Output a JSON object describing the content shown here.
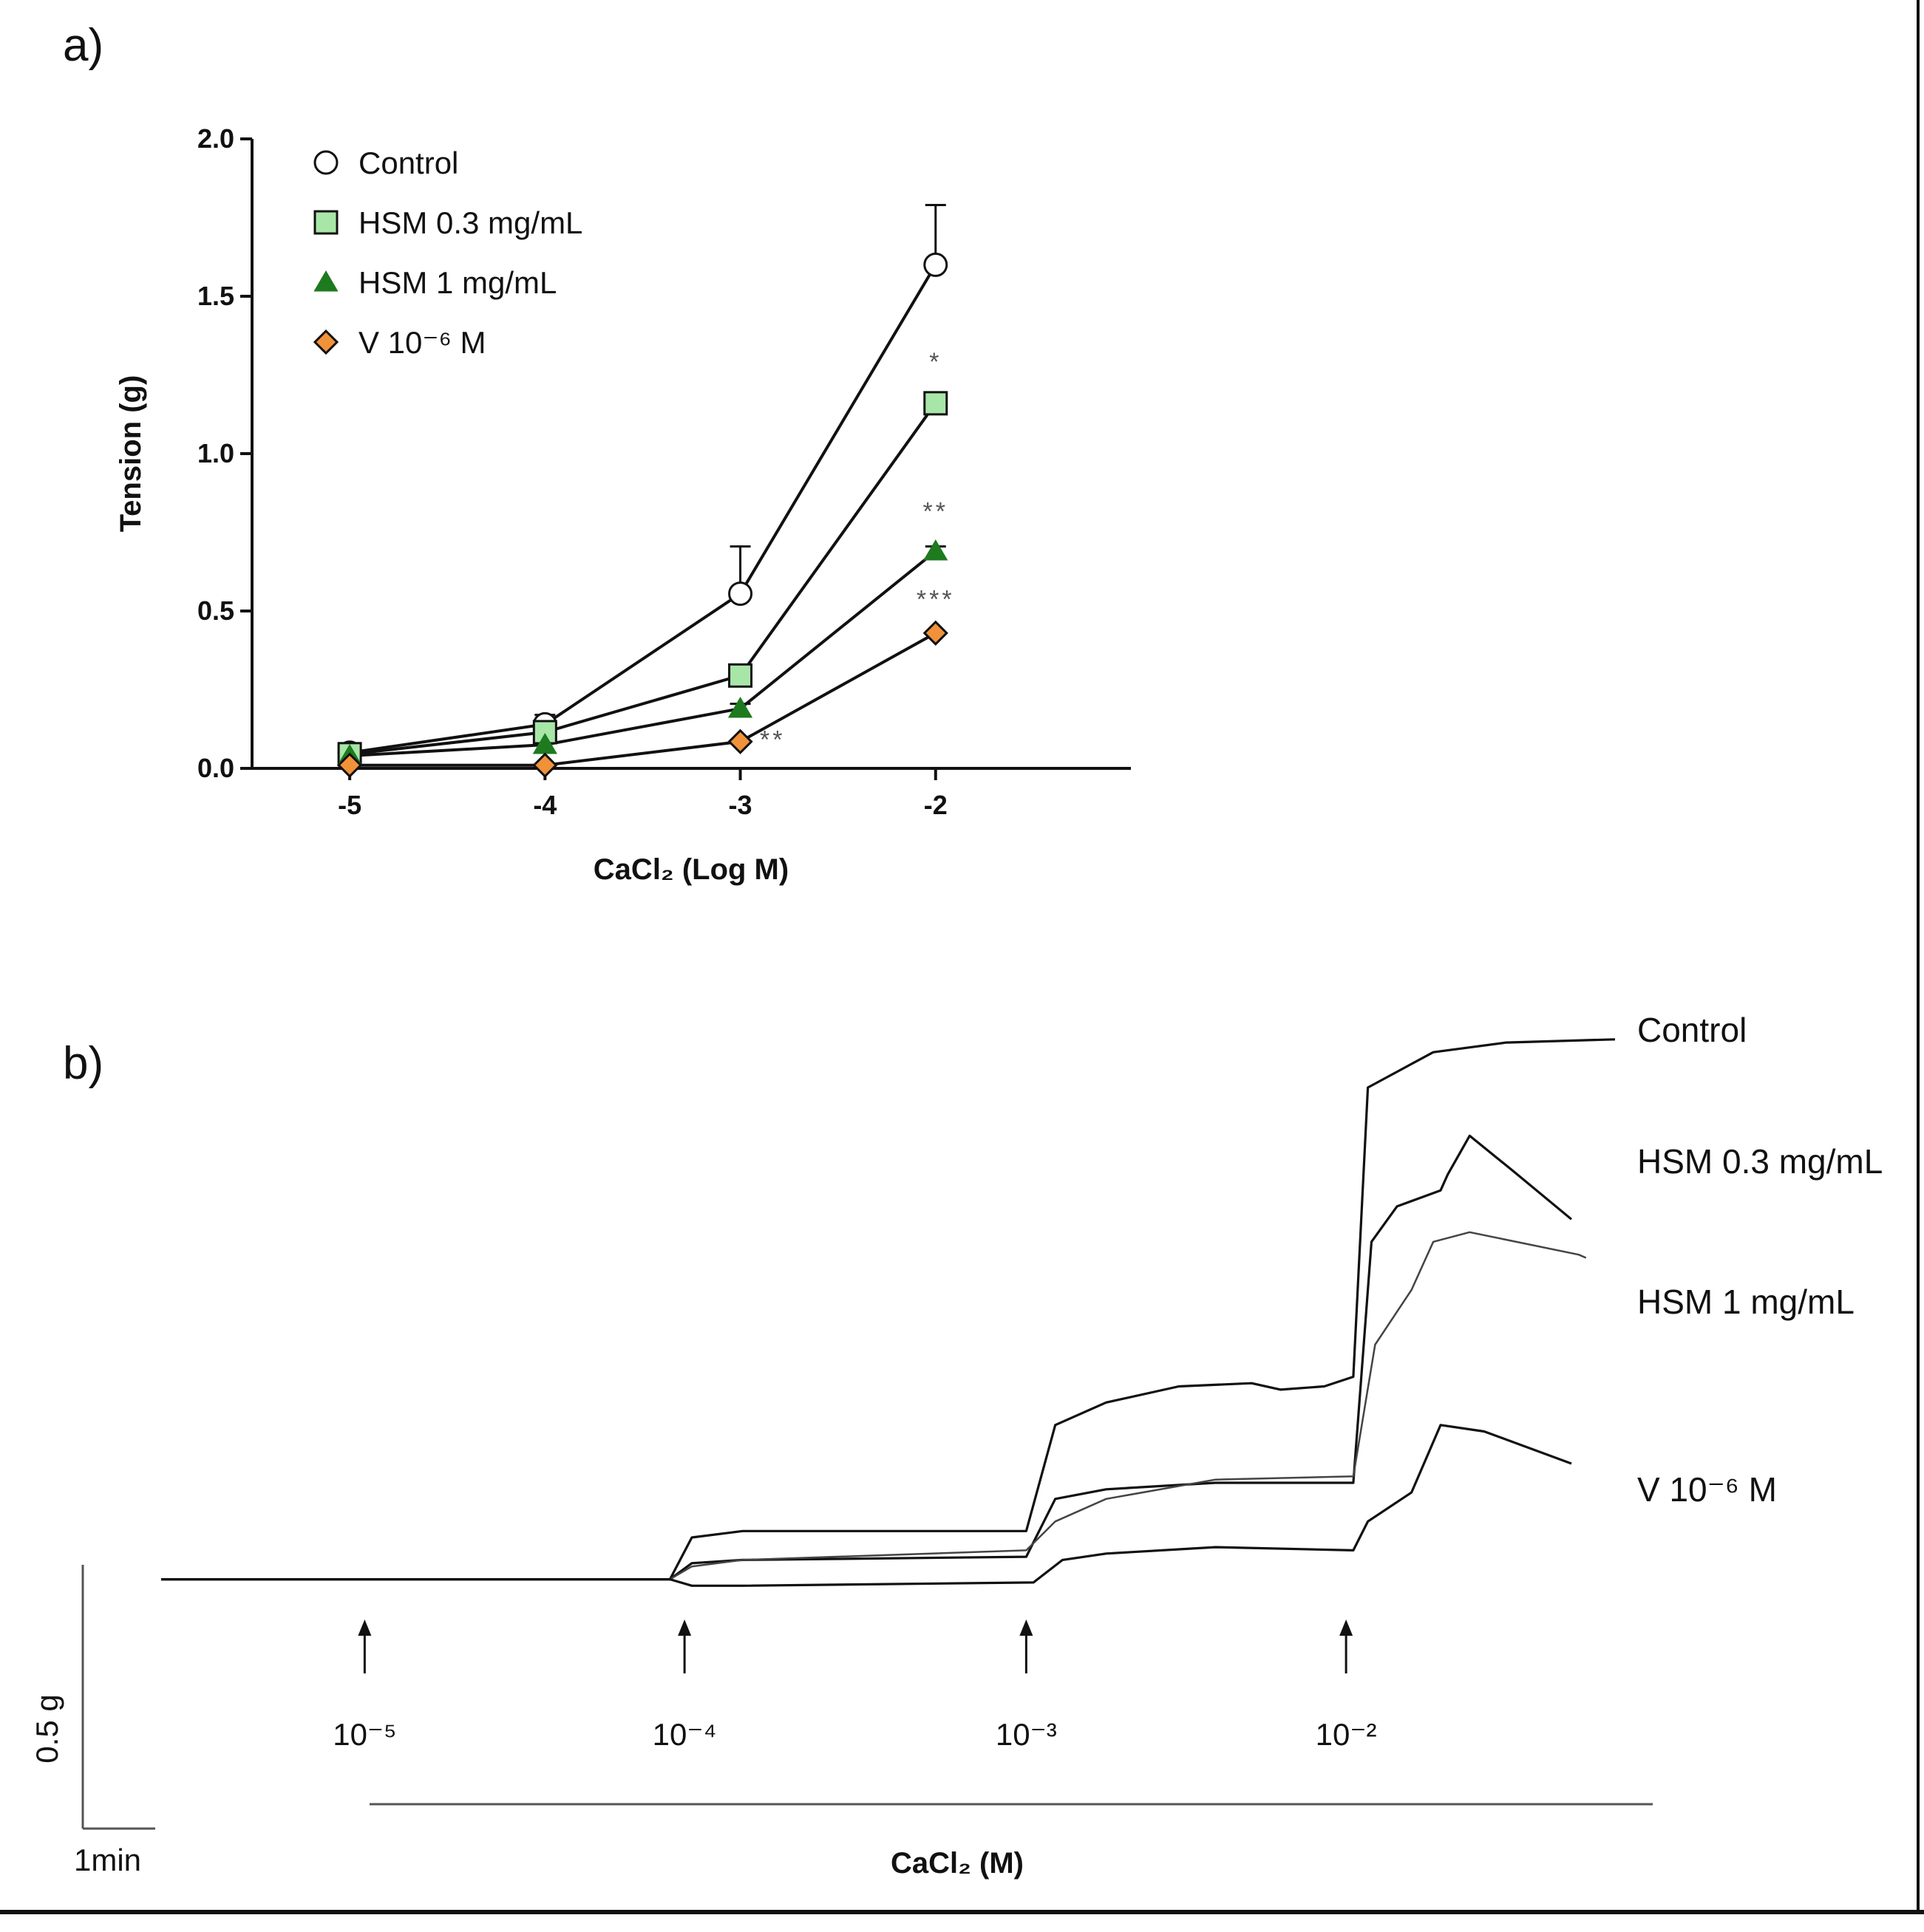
{
  "panels": {
    "a": "a)",
    "b": "b)"
  },
  "chart_data": [
    {
      "type": "line",
      "panel": "a)",
      "xlabel": "CaCl₂ (Log M)",
      "ylabel": "Tension (g)",
      "x": [
        -5,
        -4,
        -3,
        -2
      ],
      "xticks": [
        "-5",
        "-4",
        "-3",
        "-2"
      ],
      "yticks": [
        "0.0",
        "0.5",
        "1.0",
        "1.5",
        "2.0"
      ],
      "xlim": [
        -5.5,
        -1.0
      ],
      "ylim": [
        0,
        2.0
      ],
      "legend_position": "top-left",
      "series": [
        {
          "name": "Control",
          "values": [
            0.05,
            0.14,
            0.555,
            1.6
          ],
          "err_upper": [
            0,
            0.03,
            0.15,
            0.19
          ],
          "marker": "circle",
          "fill": "#ffffff"
        },
        {
          "name": "HSM 0.3 mg/mL",
          "values": [
            0.045,
            0.115,
            0.295,
            1.16
          ],
          "err_upper": [
            0,
            0.02,
            0.02,
            0.03
          ],
          "marker": "square",
          "fill": "#a8e6a8"
        },
        {
          "name": "HSM 1 mg/mL",
          "values": [
            0.04,
            0.075,
            0.19,
            0.69
          ],
          "err_upper": [
            0,
            0.01,
            0.015,
            0.015
          ],
          "marker": "triangle",
          "fill": "#1e7a1e"
        },
        {
          "name": "V 10⁻⁶ M",
          "values": [
            0.01,
            0.01,
            0.085,
            0.43
          ],
          "err_upper": [
            0,
            0,
            0,
            0
          ],
          "marker": "diamond",
          "fill": "#f0923a"
        }
      ],
      "annotations": [
        {
          "text": "*",
          "x": -2,
          "y": 1.265,
          "anchor": "middle"
        },
        {
          "text": "**",
          "x": -2,
          "y": 0.79,
          "anchor": "middle"
        },
        {
          "text": "***",
          "x": -2,
          "y": 0.51,
          "anchor": "middle"
        },
        {
          "text": "**",
          "x": -2.9,
          "y": 0.065,
          "anchor": "start"
        }
      ]
    },
    {
      "type": "line",
      "panel": "b)",
      "xlabel": "CaCl₂ (M)",
      "scale_bar_y": "0.5 g",
      "scale_bar_x": "1min",
      "additions": [
        {
          "label": "10⁻⁵",
          "time_min": 2.8
        },
        {
          "label": "10⁻⁴",
          "time_min": 7.2
        },
        {
          "label": "10⁻³",
          "time_min": 11.9
        },
        {
          "label": "10⁻²",
          "time_min": 16.3
        }
      ],
      "xlim_min": [
        0,
        20.0
      ],
      "ylim_g": [
        -0.05,
        1.75
      ],
      "series": [
        {
          "name": "Control",
          "points": [
            [
              0,
              0.02
            ],
            [
              7.0,
              0.02
            ],
            [
              7.3,
              0.15
            ],
            [
              8.0,
              0.17
            ],
            [
              11.9,
              0.17
            ],
            [
              12.3,
              0.5
            ],
            [
              13.0,
              0.57
            ],
            [
              14.0,
              0.62
            ],
            [
              15.0,
              0.63
            ],
            [
              15.4,
              0.61
            ],
            [
              16.0,
              0.62
            ],
            [
              16.4,
              0.65
            ],
            [
              16.6,
              1.55
            ],
            [
              17.5,
              1.66
            ],
            [
              18.5,
              1.69
            ],
            [
              20.0,
              1.7
            ]
          ]
        },
        {
          "name": "HSM 0.3 mg/mL",
          "points": [
            [
              0,
              0.02
            ],
            [
              7.0,
              0.02
            ],
            [
              7.3,
              0.07
            ],
            [
              8.0,
              0.08
            ],
            [
              11.9,
              0.09
            ],
            [
              12.3,
              0.27
            ],
            [
              13.0,
              0.3
            ],
            [
              14.5,
              0.32
            ],
            [
              16.4,
              0.32
            ],
            [
              16.65,
              1.07
            ],
            [
              17.0,
              1.18
            ],
            [
              17.6,
              1.23
            ],
            [
              17.7,
              1.28
            ],
            [
              18.0,
              1.4
            ],
            [
              18.6,
              1.29
            ],
            [
              19.4,
              1.14
            ]
          ]
        },
        {
          "name": "HSM 1 mg/mL",
          "points": [
            [
              0,
              0.02
            ],
            [
              7.0,
              0.02
            ],
            [
              7.3,
              0.06
            ],
            [
              8.0,
              0.08
            ],
            [
              11.9,
              0.11
            ],
            [
              12.3,
              0.2
            ],
            [
              13.0,
              0.27
            ],
            [
              14.5,
              0.33
            ],
            [
              16.4,
              0.34
            ],
            [
              16.7,
              0.75
            ],
            [
              17.2,
              0.92
            ],
            [
              17.5,
              1.07
            ],
            [
              18.0,
              1.1
            ],
            [
              19.5,
              1.03
            ],
            [
              19.6,
              1.02
            ]
          ]
        },
        {
          "name": "V 10⁻⁶ M",
          "points": [
            [
              0,
              0.02
            ],
            [
              7.0,
              0.02
            ],
            [
              7.3,
              0.0
            ],
            [
              8.0,
              0.0
            ],
            [
              12.0,
              0.01
            ],
            [
              12.4,
              0.08
            ],
            [
              13.0,
              0.1
            ],
            [
              14.5,
              0.12
            ],
            [
              16.4,
              0.11
            ],
            [
              16.6,
              0.2
            ],
            [
              17.2,
              0.29
            ],
            [
              17.6,
              0.5
            ],
            [
              18.2,
              0.48
            ],
            [
              19.4,
              0.38
            ]
          ]
        }
      ]
    }
  ]
}
